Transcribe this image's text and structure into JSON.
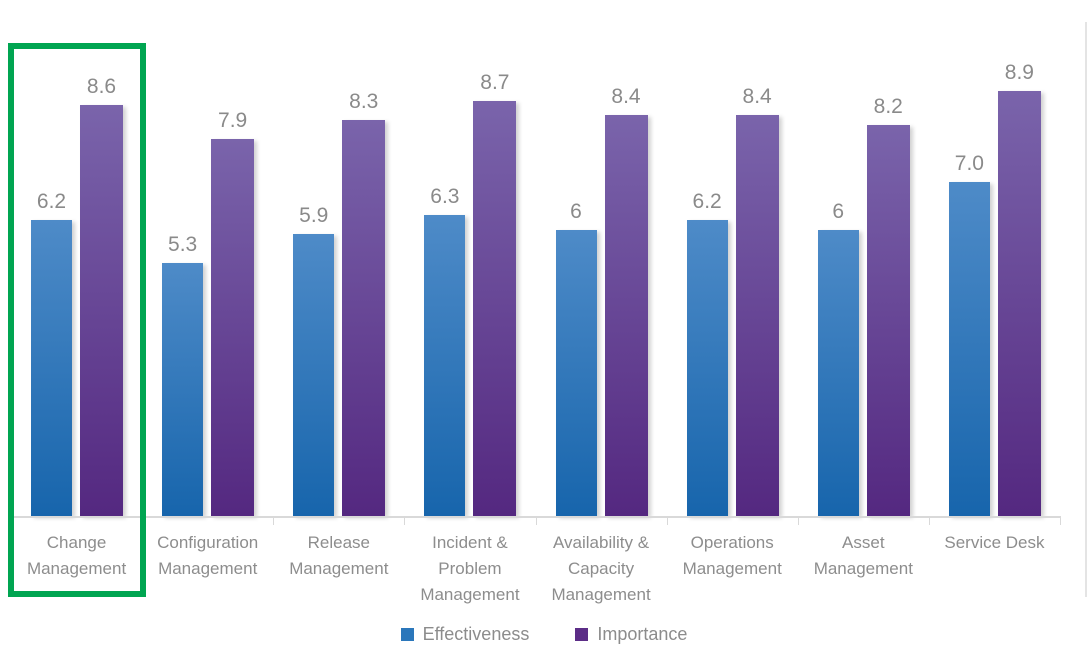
{
  "chart_data": {
    "type": "bar",
    "title": "",
    "xlabel": "",
    "ylabel": "",
    "ylim": [
      0,
      10
    ],
    "grid": false,
    "legend_position": "bottom",
    "categories": [
      "Change Management",
      "Configuration Management",
      "Release Management",
      "Incident & Problem Management",
      "Availability & Capacity Management",
      "Operations Management",
      "Asset Management",
      "Service Desk"
    ],
    "category_label_lines": [
      [
        "Change",
        "Management"
      ],
      [
        "Configuration",
        "Management"
      ],
      [
        "Release",
        "Management"
      ],
      [
        "Incident &",
        "Problem",
        "Management"
      ],
      [
        "Availability &",
        "Capacity",
        "Management"
      ],
      [
        "Operations",
        "Management"
      ],
      [
        "Asset",
        "Management"
      ],
      [
        "Service Desk"
      ]
    ],
    "series": [
      {
        "name": "Effectiveness",
        "values": [
          6.2,
          5.3,
          5.9,
          6.3,
          6,
          6.2,
          6,
          7
        ],
        "value_labels": [
          "6.2",
          "5.3",
          "5.9",
          "6.3",
          "6",
          "6.2",
          "6",
          "7.0"
        ],
        "color_top": "#4e8bc8",
        "color_bottom": "#1765ac",
        "legend_color": "#2b77bb"
      },
      {
        "name": "Importance",
        "values": [
          8.6,
          7.9,
          8.3,
          8.7,
          8.4,
          8.4,
          8.2,
          8.9
        ],
        "value_labels": [
          "8.6",
          "7.9",
          "8.3",
          "8.7",
          "8.4",
          "8.4",
          "8.2",
          "8.9"
        ],
        "color_top": "#7a64ab",
        "color_bottom": "#542880",
        "legend_color": "#5c2d87"
      }
    ],
    "annotations": [
      {
        "type": "highlight-box",
        "target_category": "Change Management",
        "color": "#00a551"
      }
    ]
  },
  "colors": {
    "background": "#ffffff",
    "axis": "#d9d9d9",
    "value_label_text": "#8a8a8a",
    "category_label_text": "#8d8d8d",
    "legend_text": "#8c8c8c",
    "highlight_green": "#00a551"
  }
}
